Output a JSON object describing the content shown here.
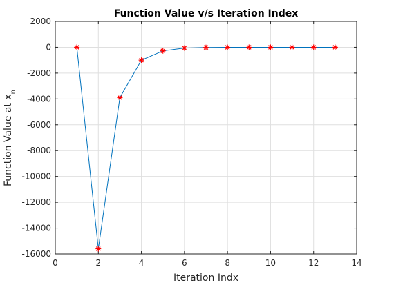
{
  "chart_data": {
    "type": "line",
    "title": "Function Value v/s Iteration Index",
    "xlabel": "Iteration Indx",
    "ylabel": "Function Value at x",
    "ylabel_subscript": "n",
    "xlim": [
      0,
      14
    ],
    "ylim": [
      -16000,
      2000
    ],
    "xticks": [
      0,
      2,
      4,
      6,
      8,
      10,
      12,
      14
    ],
    "yticks": [
      -16000,
      -14000,
      -12000,
      -10000,
      -8000,
      -6000,
      -4000,
      -2000,
      0,
      2000
    ],
    "grid": true,
    "series": [
      {
        "x": [
          1,
          2,
          3,
          4,
          5,
          6,
          7,
          8,
          9,
          10,
          11,
          12,
          13
        ],
        "y": [
          0,
          -15600,
          -3900,
          -1000,
          -280,
          -60,
          -15,
          -5,
          -2,
          -1,
          -1,
          -1,
          -1
        ],
        "line_color": "#0072BD",
        "marker": "*",
        "marker_color": "#FF0000"
      }
    ]
  }
}
